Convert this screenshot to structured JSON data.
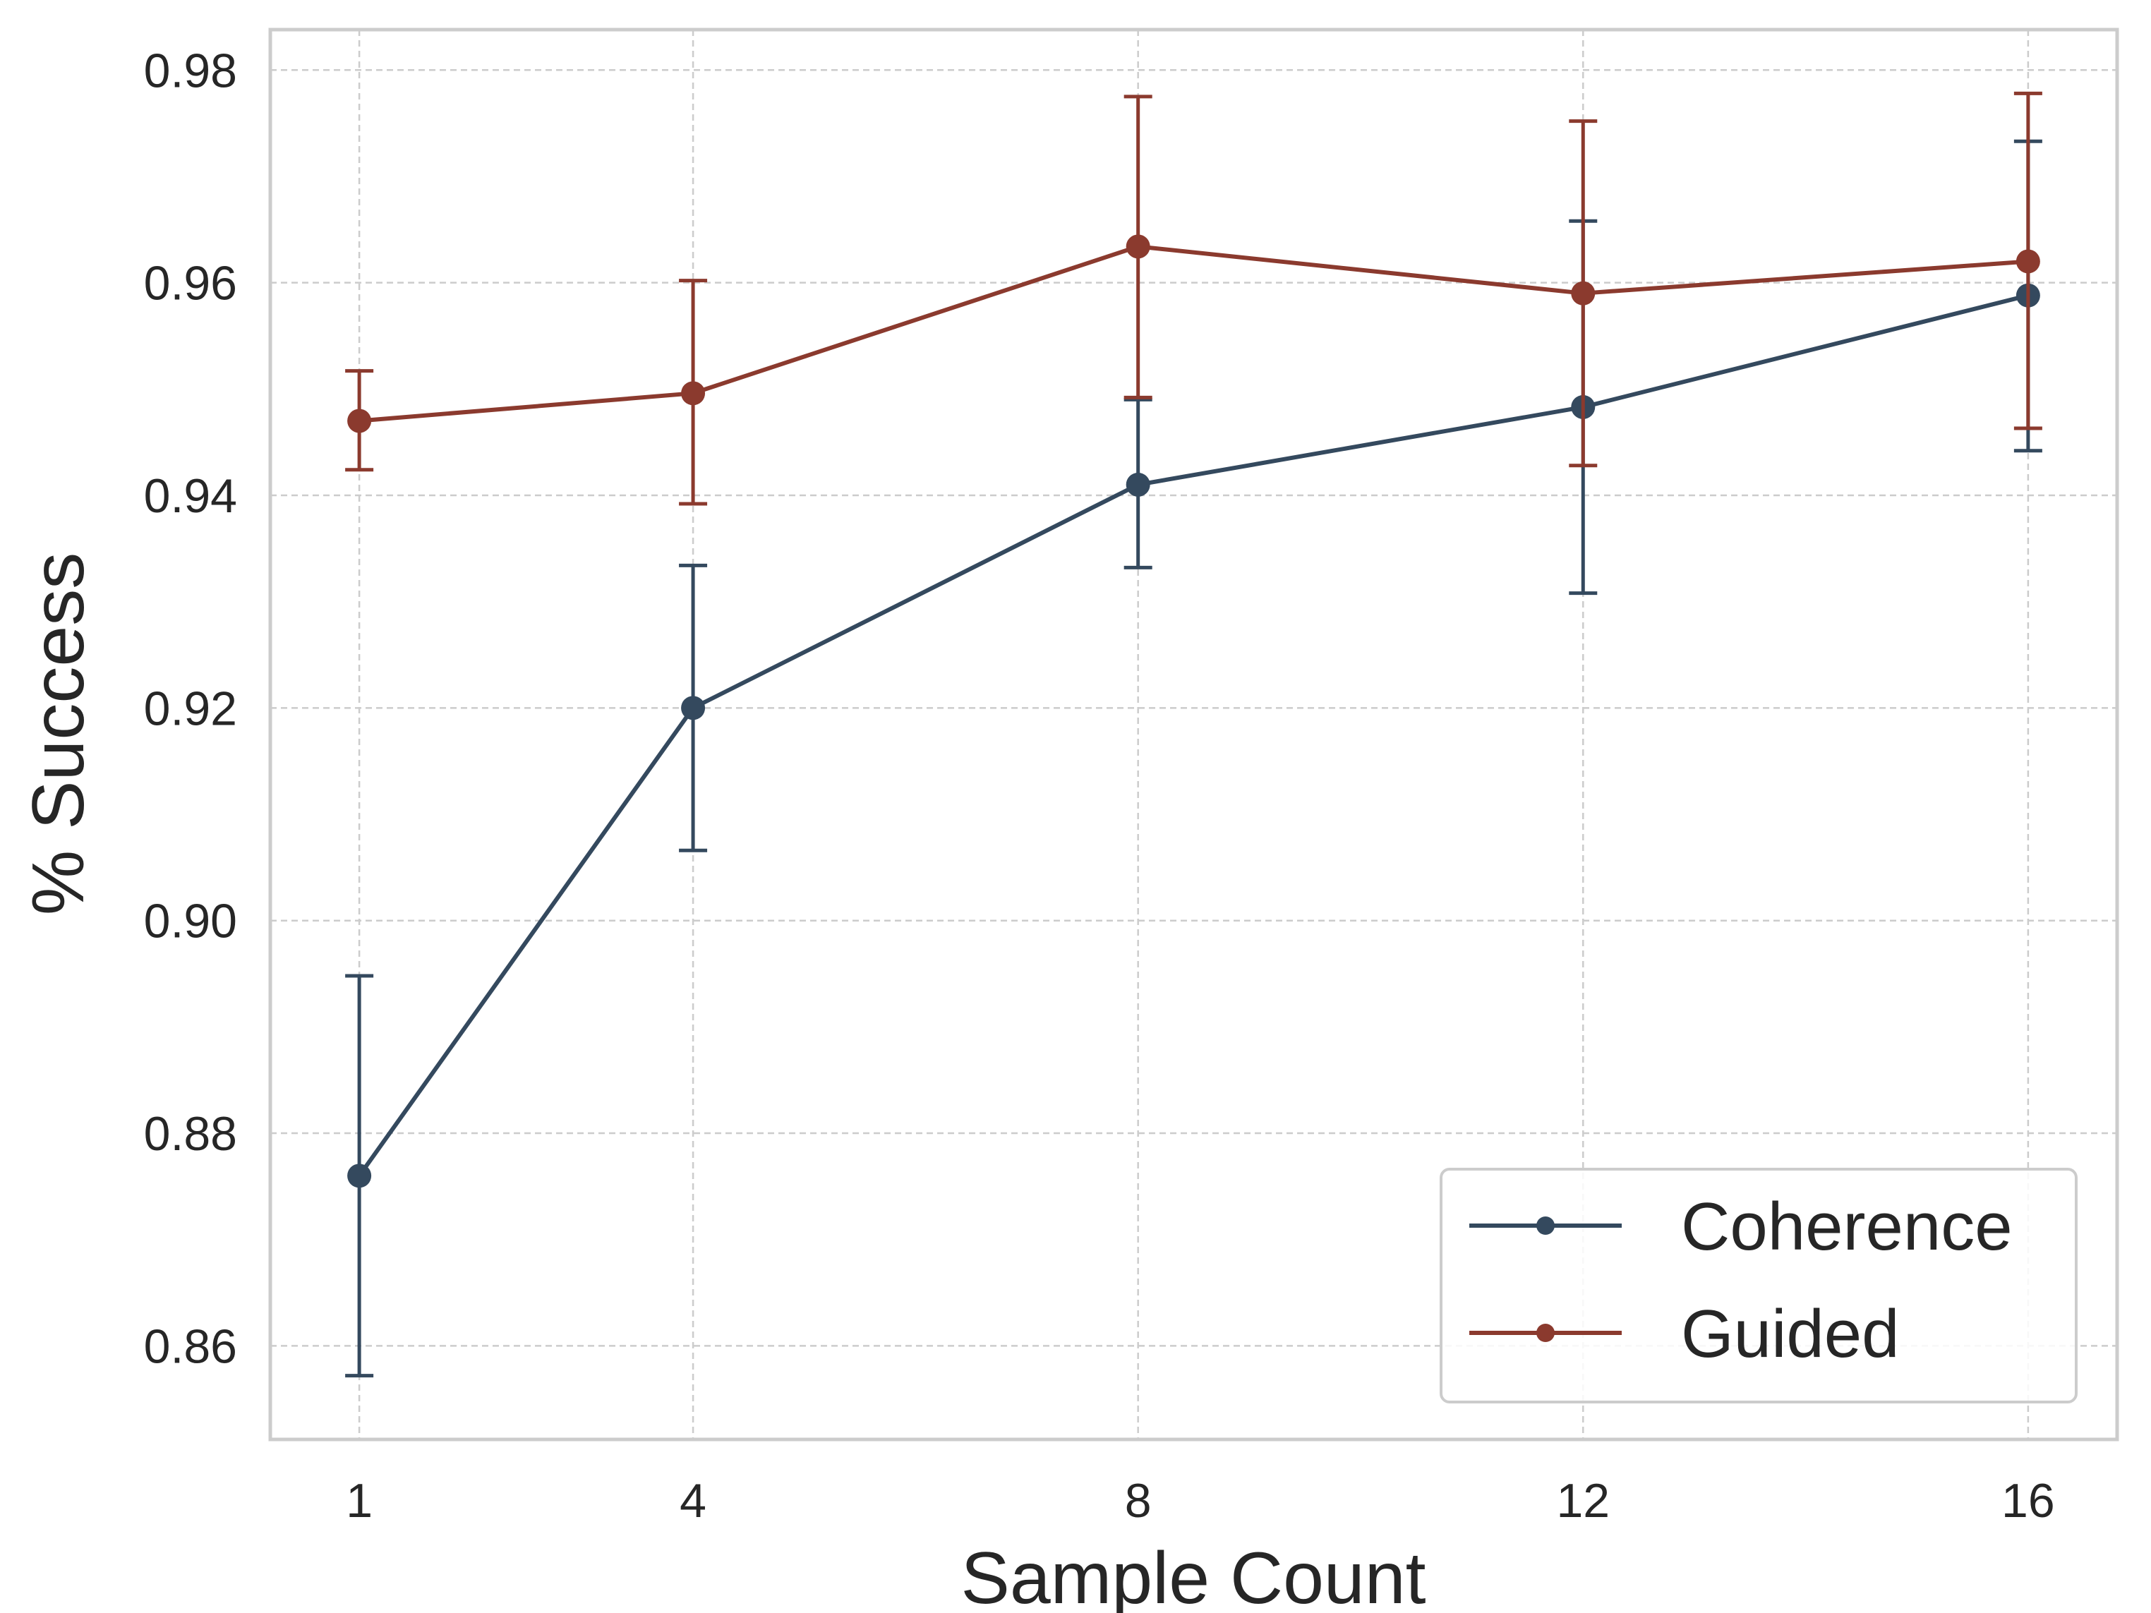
{
  "chart_data": {
    "type": "line",
    "title": "",
    "xlabel": "Sample Count",
    "ylabel": "% Success",
    "x": [
      1,
      4,
      8,
      12,
      16
    ],
    "xticks": [
      "1",
      "4",
      "8",
      "12",
      "16"
    ],
    "xlim": [
      0.2,
      16.8
    ],
    "yticks": [
      "0.86",
      "0.88",
      "0.90",
      "0.92",
      "0.94",
      "0.96",
      "0.98"
    ],
    "ytick_values": [
      0.86,
      0.88,
      0.9,
      0.92,
      0.94,
      0.96,
      0.98
    ],
    "ylim": [
      0.8512,
      0.9838
    ],
    "grid": true,
    "grid_style": "dashed",
    "legend_position": "lower-right",
    "series": [
      {
        "name": "Coherence",
        "color": "#34495e",
        "values": [
          0.876,
          0.92,
          0.941,
          0.9483,
          0.9588
        ],
        "err_low": [
          0.8572,
          0.9066,
          0.9332,
          0.9308,
          0.9442
        ],
        "err_high": [
          0.8948,
          0.9334,
          0.949,
          0.9658,
          0.9733
        ]
      },
      {
        "name": "Guided",
        "color": "#8b3a2e",
        "values": [
          0.947,
          0.9496,
          0.9634,
          0.959,
          0.962
        ],
        "err_low": [
          0.9424,
          0.9392,
          0.9492,
          0.9428,
          0.9463
        ],
        "err_high": [
          0.9517,
          0.9602,
          0.9775,
          0.9752,
          0.9778
        ]
      }
    ]
  }
}
